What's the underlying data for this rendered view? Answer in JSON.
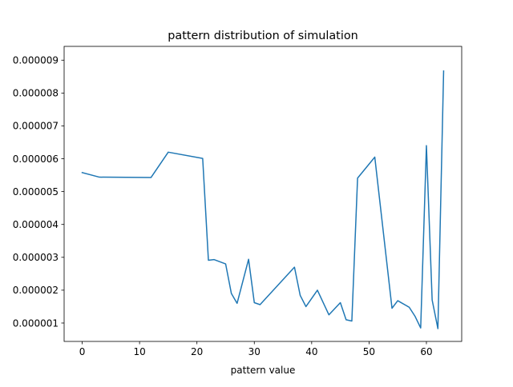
{
  "chart_data": {
    "type": "line",
    "title": "pattern distribution of simulation",
    "xlabel": "pattern value",
    "ylabel": "",
    "xlim": [
      -3.15,
      66.15
    ],
    "ylim": [
      4.4e-07,
      9.42e-06
    ],
    "grid": false,
    "x_ticks": [
      {
        "value": 0,
        "label": "0"
      },
      {
        "value": 10,
        "label": "10"
      },
      {
        "value": 20,
        "label": "20"
      },
      {
        "value": 30,
        "label": "30"
      },
      {
        "value": 40,
        "label": "40"
      },
      {
        "value": 50,
        "label": "50"
      },
      {
        "value": 60,
        "label": "60"
      }
    ],
    "y_ticks": [
      {
        "value": 1e-06,
        "label": "0.000001"
      },
      {
        "value": 2e-06,
        "label": "0.000002"
      },
      {
        "value": 3e-06,
        "label": "0.000003"
      },
      {
        "value": 4e-06,
        "label": "0.000004"
      },
      {
        "value": 5e-06,
        "label": "0.000005"
      },
      {
        "value": 6e-06,
        "label": "0.000006"
      },
      {
        "value": 7e-06,
        "label": "0.000007"
      },
      {
        "value": 8e-06,
        "label": "0.000008"
      },
      {
        "value": 9e-06,
        "label": "0.000009"
      }
    ],
    "series": [
      {
        "color": "#1f77b4",
        "x": [
          0,
          3,
          12,
          15,
          21,
          22,
          23,
          25,
          26,
          27,
          29,
          30,
          31,
          37,
          38,
          39,
          41,
          43,
          45,
          46,
          47,
          48,
          51,
          54,
          55,
          57,
          58,
          59,
          60,
          61,
          62,
          63
        ],
        "y": [
          5.58e-06,
          5.44e-06,
          5.43e-06,
          6.2e-06,
          6.01e-06,
          2.91e-06,
          2.93e-06,
          2.8e-06,
          1.9e-06,
          1.6e-06,
          2.94e-06,
          1.62e-06,
          1.56e-06,
          2.7e-06,
          1.84e-06,
          1.5e-06,
          2e-06,
          1.25e-06,
          1.62e-06,
          1.1e-06,
          1.06e-06,
          5.41e-06,
          6.05e-06,
          1.45e-06,
          1.68e-06,
          1.48e-06,
          1.21e-06,
          8.5e-07,
          6.4e-06,
          1.7e-06,
          8.3e-07,
          8.67e-06
        ]
      }
    ]
  }
}
